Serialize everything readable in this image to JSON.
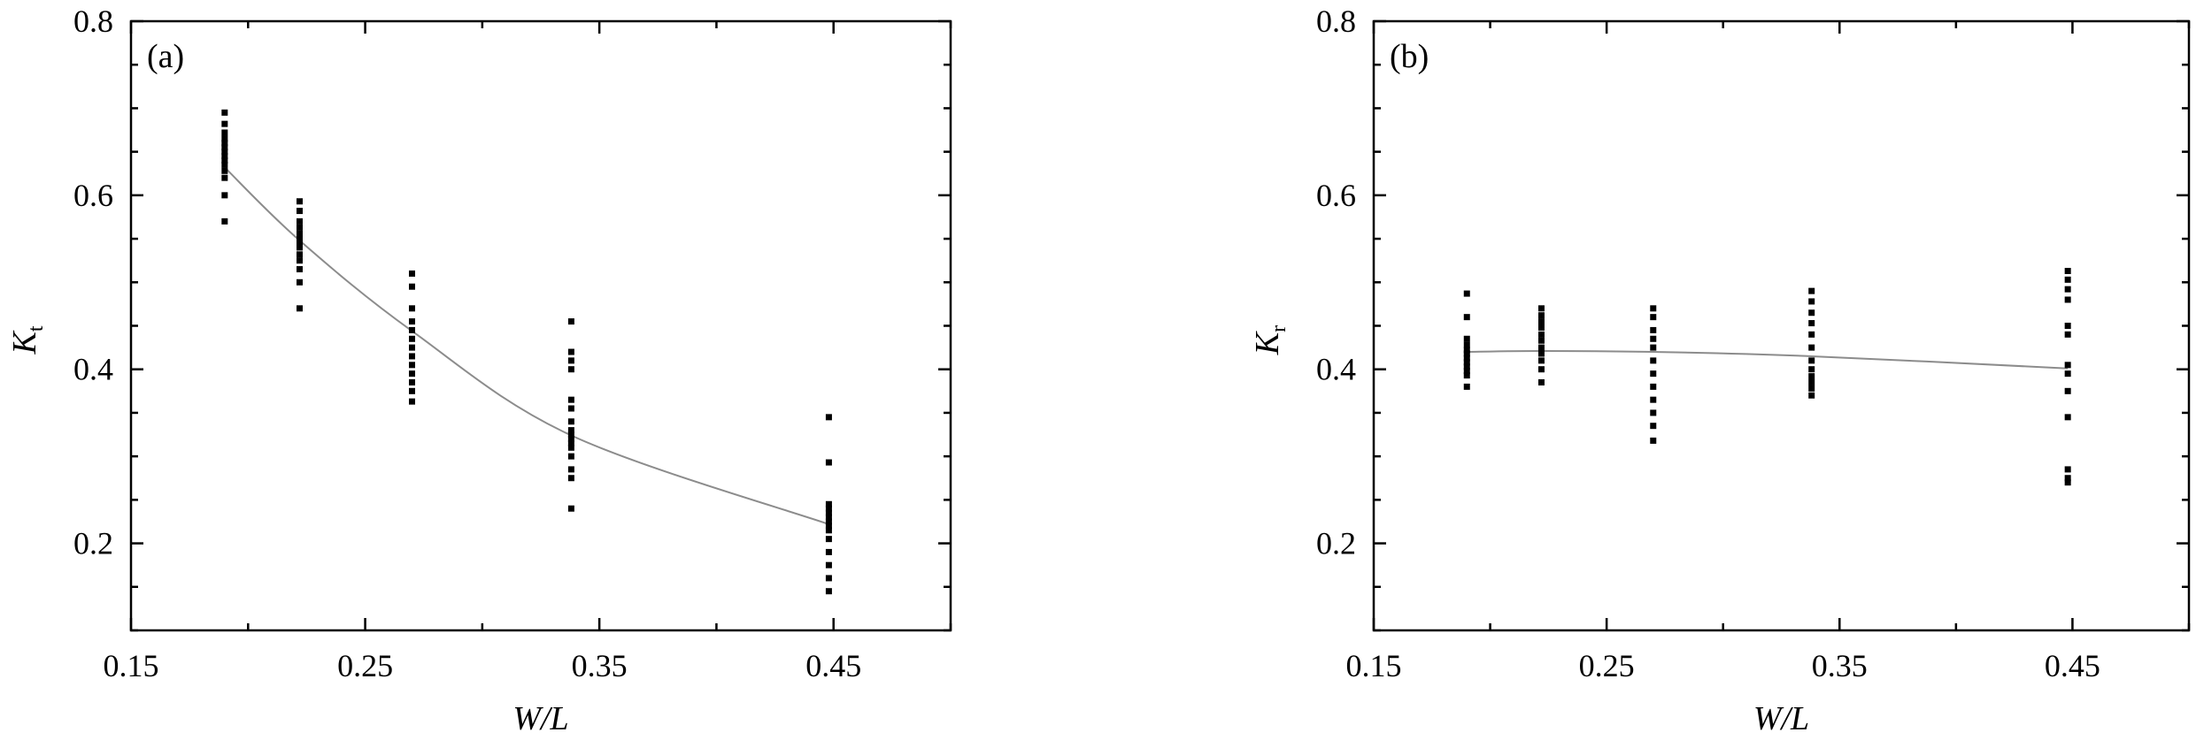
{
  "chart_data": [
    {
      "type": "scatter",
      "panel_label": "(a)",
      "xlabel": "W/L",
      "ylabel": {
        "main": "K",
        "sub": "t"
      },
      "xlim": [
        0.15,
        0.5
      ],
      "ylim": [
        0.1,
        0.8
      ],
      "x_ticks": [
        0.15,
        0.25,
        0.35,
        0.45
      ],
      "y_ticks": [
        0.2,
        0.4,
        0.6,
        0.8
      ],
      "x_tick_labels": [
        "0.15",
        "0.25",
        "0.35",
        "0.45"
      ],
      "y_tick_labels": [
        "0.2",
        "0.4",
        "0.6",
        "0.8"
      ],
      "grid": false,
      "series": [
        {
          "points": [
            {
              "x": 0.19,
              "ys": [
                0.695,
                0.682,
                0.672,
                0.665,
                0.66,
                0.655,
                0.65,
                0.645,
                0.64,
                0.635,
                0.628,
                0.62,
                0.6,
                0.57
              ]
            },
            {
              "x": 0.222,
              "ys": [
                0.593,
                0.582,
                0.57,
                0.563,
                0.556,
                0.55,
                0.545,
                0.54,
                0.532,
                0.525,
                0.515,
                0.5,
                0.47
              ]
            },
            {
              "x": 0.27,
              "ys": [
                0.51,
                0.495,
                0.47,
                0.455,
                0.445,
                0.435,
                0.425,
                0.415,
                0.405,
                0.395,
                0.385,
                0.375,
                0.363
              ]
            },
            {
              "x": 0.338,
              "ys": [
                0.455,
                0.42,
                0.41,
                0.4,
                0.365,
                0.355,
                0.34,
                0.33,
                0.325,
                0.32,
                0.315,
                0.31,
                0.3,
                0.285,
                0.275,
                0.24
              ]
            },
            {
              "x": 0.448,
              "ys": [
                0.345,
                0.293,
                0.245,
                0.24,
                0.235,
                0.23,
                0.225,
                0.22,
                0.215,
                0.205,
                0.19,
                0.175,
                0.16,
                0.145
              ]
            }
          ]
        },
        {
          "type": "line",
          "x": [
            0.19,
            0.222,
            0.27,
            0.338,
            0.448
          ],
          "y": [
            0.632,
            0.548,
            0.444,
            0.324,
            0.222
          ]
        }
      ]
    },
    {
      "type": "scatter",
      "panel_label": "(b)",
      "xlabel": "W/L",
      "ylabel": {
        "main": "K",
        "sub": "r"
      },
      "xlim": [
        0.15,
        0.5
      ],
      "ylim": [
        0.1,
        0.8
      ],
      "x_ticks": [
        0.15,
        0.25,
        0.35,
        0.45
      ],
      "y_ticks": [
        0.2,
        0.4,
        0.6,
        0.8
      ],
      "x_tick_labels": [
        "0.15",
        "0.25",
        "0.35",
        "0.45"
      ],
      "y_tick_labels": [
        "0.2",
        "0.4",
        "0.6",
        "0.8"
      ],
      "grid": false,
      "series": [
        {
          "points": [
            {
              "x": 0.19,
              "ys": [
                0.487,
                0.46,
                0.435,
                0.428,
                0.422,
                0.418,
                0.413,
                0.408,
                0.403,
                0.398,
                0.393,
                0.38
              ]
            },
            {
              "x": 0.222,
              "ys": [
                0.47,
                0.462,
                0.455,
                0.448,
                0.44,
                0.433,
                0.425,
                0.418,
                0.41,
                0.4,
                0.385
              ]
            },
            {
              "x": 0.27,
              "ys": [
                0.47,
                0.46,
                0.445,
                0.435,
                0.425,
                0.41,
                0.395,
                0.38,
                0.365,
                0.35,
                0.335,
                0.318
              ]
            },
            {
              "x": 0.338,
              "ys": [
                0.49,
                0.478,
                0.465,
                0.453,
                0.44,
                0.425,
                0.41,
                0.4,
                0.392,
                0.385,
                0.378,
                0.37
              ]
            },
            {
              "x": 0.448,
              "ys": [
                0.513,
                0.503,
                0.492,
                0.48,
                0.45,
                0.44,
                0.405,
                0.395,
                0.375,
                0.345,
                0.285,
                0.275,
                0.27
              ]
            }
          ]
        },
        {
          "type": "line",
          "x": [
            0.19,
            0.222,
            0.27,
            0.338,
            0.448
          ],
          "y": [
            0.42,
            0.421,
            0.42,
            0.415,
            0.401
          ]
        }
      ]
    }
  ]
}
